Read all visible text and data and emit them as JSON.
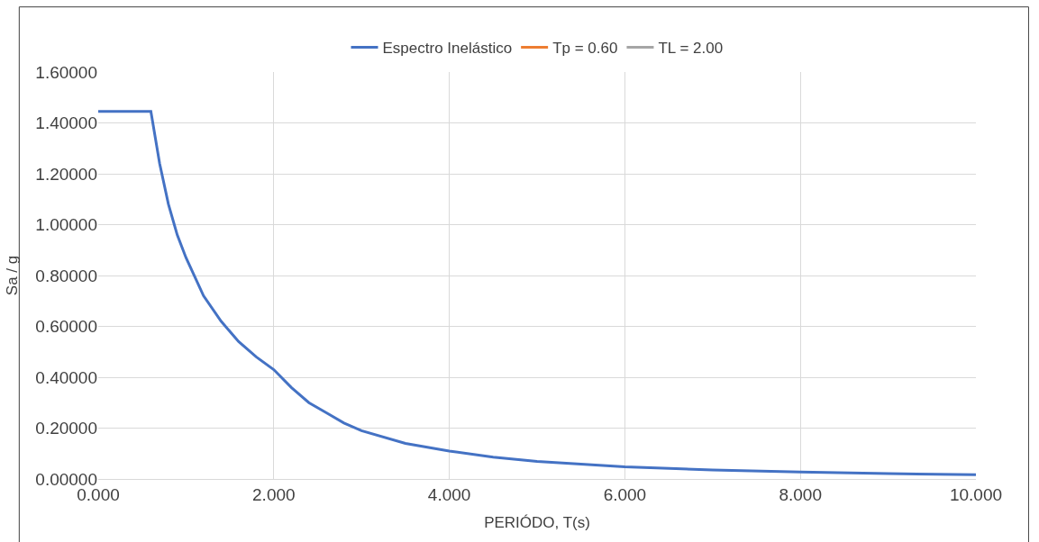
{
  "chart_data": {
    "type": "line",
    "xlabel": "PERIÓDO, T(s)",
    "ylabel": "Sa / g",
    "x": [
      0,
      0.6,
      0.7,
      0.8,
      0.9,
      1.0,
      1.2,
      1.4,
      1.6,
      1.8,
      2.0,
      2.2,
      2.4,
      2.6,
      2.8,
      3.0,
      3.5,
      4.0,
      4.5,
      5.0,
      6.0,
      7.0,
      8.0,
      9.0,
      10.0
    ],
    "series": [
      {
        "name": "Espectro Inelástico",
        "color": "#4472c4",
        "values": [
          1.445,
          1.445,
          1.24,
          1.08,
          0.96,
          0.87,
          0.72,
          0.62,
          0.54,
          0.48,
          0.43,
          0.36,
          0.3,
          0.26,
          0.22,
          0.19,
          0.14,
          0.11,
          0.086,
          0.069,
          0.048,
          0.035,
          0.027,
          0.021,
          0.017
        ]
      },
      {
        "name": "Tp = 0.60",
        "color": "#ed7d31",
        "values": [
          null,
          null,
          null,
          null,
          null,
          null,
          null,
          null,
          null,
          null,
          null,
          null,
          null,
          null,
          null,
          null,
          null,
          null,
          null,
          null,
          null,
          null,
          null,
          null,
          null
        ]
      },
      {
        "name": "TL = 2.00",
        "color": "#a5a5a5",
        "values": [
          null,
          null,
          null,
          null,
          null,
          null,
          null,
          null,
          null,
          null,
          null,
          null,
          null,
          null,
          null,
          null,
          null,
          null,
          null,
          null,
          null,
          null,
          null,
          null,
          null
        ]
      }
    ],
    "xlim": [
      0,
      10
    ],
    "xticks": [
      {
        "value": 0,
        "label": "0.000"
      },
      {
        "value": 2,
        "label": "2.000"
      },
      {
        "value": 4,
        "label": "4.000"
      },
      {
        "value": 6,
        "label": "6.000"
      },
      {
        "value": 8,
        "label": "8.000"
      },
      {
        "value": 10,
        "label": "10.000"
      }
    ],
    "ylim": [
      0,
      1.6
    ],
    "yticks": [
      {
        "value": 0,
        "label": "0.00000"
      },
      {
        "value": 0.2,
        "label": "0.20000"
      },
      {
        "value": 0.4,
        "label": "0.40000"
      },
      {
        "value": 0.6,
        "label": "0.60000"
      },
      {
        "value": 0.8,
        "label": "0.80000"
      },
      {
        "value": 1.0,
        "label": "1.00000"
      },
      {
        "value": 1.2,
        "label": "1.20000"
      },
      {
        "value": 1.4,
        "label": "1.40000"
      },
      {
        "value": 1.6,
        "label": "1.60000"
      }
    ],
    "grid": true,
    "legend": "top",
    "marker": "none",
    "line_style": "solid"
  }
}
